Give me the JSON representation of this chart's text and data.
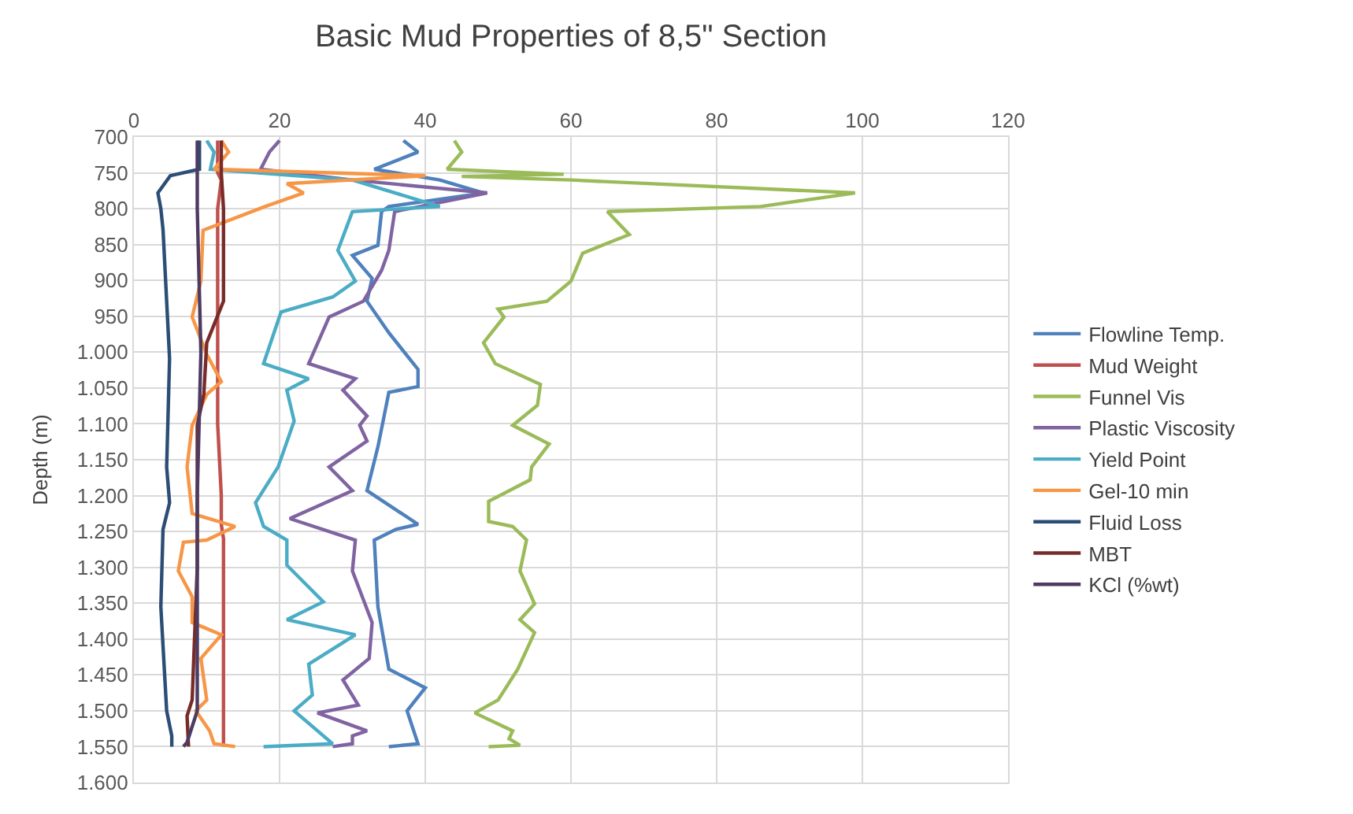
{
  "chart_data": {
    "type": "line",
    "orientation": "horizontal",
    "title": "Basic Mud Properties of 8,5\" Section",
    "ylabel": "Depth (m)",
    "xlim": [
      0,
      120
    ],
    "xticks": [
      0,
      20,
      40,
      60,
      80,
      100,
      120
    ],
    "ylim": [
      1600,
      700
    ],
    "yticks": [
      700,
      750,
      800,
      850,
      900,
      950,
      {
        "value": 1000,
        "label": "1.000"
      },
      {
        "value": 1050,
        "label": "1.050"
      },
      {
        "value": 1100,
        "label": "1.100"
      },
      {
        "value": 1150,
        "label": "1.150"
      },
      {
        "value": 1200,
        "label": "1.200"
      },
      {
        "value": 1250,
        "label": "1.250"
      },
      {
        "value": 1300,
        "label": "1.300"
      },
      {
        "value": 1350,
        "label": "1.350"
      },
      {
        "value": 1400,
        "label": "1.400"
      },
      {
        "value": 1450,
        "label": "1.450"
      },
      {
        "value": 1500,
        "label": "1.500"
      },
      {
        "value": 1550,
        "label": "1.550"
      },
      {
        "value": 1600,
        "label": "1.600"
      }
    ],
    "grid": true,
    "legend": "right",
    "series": [
      {
        "name": "Flowline Temp.",
        "color": "#4f81bd",
        "x": [
          705,
          721,
          745,
          760,
          778,
          797,
          804,
          851,
          865,
          897,
          929,
          973,
          1024,
          1048,
          1056,
          1132,
          1193,
          1240,
          1247,
          1262,
          1355,
          1442,
          1468,
          1500,
          1546,
          1550
        ],
        "values": [
          37,
          39,
          33,
          42,
          48,
          35,
          34,
          33.5,
          30,
          32.7,
          32,
          35,
          39,
          39,
          35,
          33.5,
          32,
          39,
          36,
          33,
          33.5,
          35,
          40,
          37.5,
          39,
          35
        ]
      },
      {
        "name": "Mud Weight",
        "color": "#c0504d",
        "x": [
          705,
          750,
          760,
          800,
          900,
          1000,
          1100,
          1200,
          1240,
          1260,
          1400,
          1550
        ],
        "values": [
          11.5,
          11.5,
          12,
          11.5,
          11.5,
          11.5,
          11.5,
          12,
          12,
          12.3,
          12.3,
          12.3
        ]
      },
      {
        "name": "Funnel Vis",
        "color": "#9bbb59",
        "x": [
          705,
          721,
          745,
          752,
          755,
          760,
          778,
          797,
          804,
          836,
          862,
          901,
          929,
          940,
          951,
          987,
          1016,
          1045,
          1074,
          1102,
          1128,
          1160,
          1178,
          1208,
          1236,
          1243,
          1262,
          1305,
          1351,
          1373,
          1391,
          1442,
          1485,
          1503,
          1528,
          1539,
          1548,
          1550
        ],
        "values": [
          44,
          45,
          43,
          59,
          45,
          60,
          99,
          86,
          65,
          68,
          61.6,
          60,
          56.7,
          50,
          50.8,
          48,
          49.6,
          55.8,
          55.4,
          52,
          57,
          54.6,
          54.4,
          48.7,
          48.7,
          52,
          53.9,
          53,
          55,
          53,
          55,
          52.7,
          50,
          46.8,
          52,
          51.5,
          53,
          48.7
        ]
      },
      {
        "name": "Plastic Viscosity",
        "color": "#8064a2",
        "x": [
          705,
          721,
          745,
          760,
          778,
          804,
          858,
          886,
          929,
          951,
          1016,
          1037,
          1053,
          1089,
          1102,
          1124,
          1160,
          1193,
          1232,
          1262,
          1305,
          1377,
          1427,
          1457,
          1492,
          1503,
          1528,
          1535,
          1546,
          1550
        ],
        "values": [
          20,
          18.6,
          17.4,
          30,
          48.5,
          35.8,
          35,
          34,
          31.5,
          26.8,
          24,
          30.4,
          28.7,
          32,
          31,
          32,
          26.8,
          30,
          21.4,
          30.4,
          30,
          32.7,
          32.3,
          28.7,
          30.8,
          25.2,
          32,
          30,
          30,
          27.3
        ]
      },
      {
        "name": "Yield Point",
        "color": "#4bacc6",
        "x": [
          705,
          721,
          745,
          760,
          797,
          804,
          858,
          901,
          923,
          944,
          1016,
          1037,
          1053,
          1096,
          1160,
          1210,
          1243,
          1262,
          1297,
          1348,
          1373,
          1394,
          1435,
          1478,
          1500,
          1546,
          1550
        ],
        "values": [
          10,
          11,
          10.5,
          30,
          42,
          30,
          28,
          30.4,
          27.3,
          20.2,
          17.8,
          24,
          21,
          22,
          19.8,
          16.7,
          17.8,
          21,
          21,
          26,
          21,
          30.4,
          24,
          24.5,
          22,
          27.3,
          17.8
        ]
      },
      {
        "name": "Gel-10 min",
        "color": "#f79646",
        "x": [
          705,
          721,
          745,
          754,
          765,
          778,
          797,
          830,
          901,
          951,
          1003,
          1041,
          1059,
          1102,
          1160,
          1225,
          1243,
          1262,
          1265,
          1305,
          1341,
          1377,
          1394,
          1427,
          1485,
          1500,
          1528,
          1546,
          1550
        ],
        "values": [
          12,
          13,
          11,
          40,
          21,
          23.3,
          18,
          9.5,
          9.2,
          8,
          10,
          12,
          10,
          8,
          7.3,
          8,
          13.9,
          10,
          6.8,
          6.1,
          8,
          8,
          12,
          9.2,
          10,
          8.5,
          10.4,
          11,
          13.9
        ]
      },
      {
        "name": "Fluid Loss",
        "color": "#2c4d75",
        "x": [
          705,
          745,
          754,
          778,
          800,
          829,
          1009,
          1160,
          1210,
          1247,
          1355,
          1500,
          1535,
          1550
        ],
        "values": [
          9,
          9,
          5,
          3.3,
          3.7,
          4,
          4.9,
          4.5,
          4.9,
          4,
          3.7,
          4.5,
          5.2,
          5.2
        ]
      },
      {
        "name": "MBT",
        "color": "#772c2a",
        "x": [
          705,
          750,
          800,
          929,
          987,
          1059,
          1102,
          1300,
          1485,
          1507,
          1550
        ],
        "values": [
          12,
          12,
          12.3,
          12.3,
          10,
          9.6,
          8.7,
          8.7,
          8,
          7.3,
          7.5
        ]
      },
      {
        "name": "KCl (%wt)",
        "color": "#4d3b62",
        "x": [
          705,
          800,
          1000,
          1200,
          1400,
          1500,
          1544,
          1550
        ],
        "values": [
          8.7,
          8.7,
          9.2,
          8.7,
          8.7,
          8.7,
          7.3,
          6.8
        ]
      }
    ]
  }
}
